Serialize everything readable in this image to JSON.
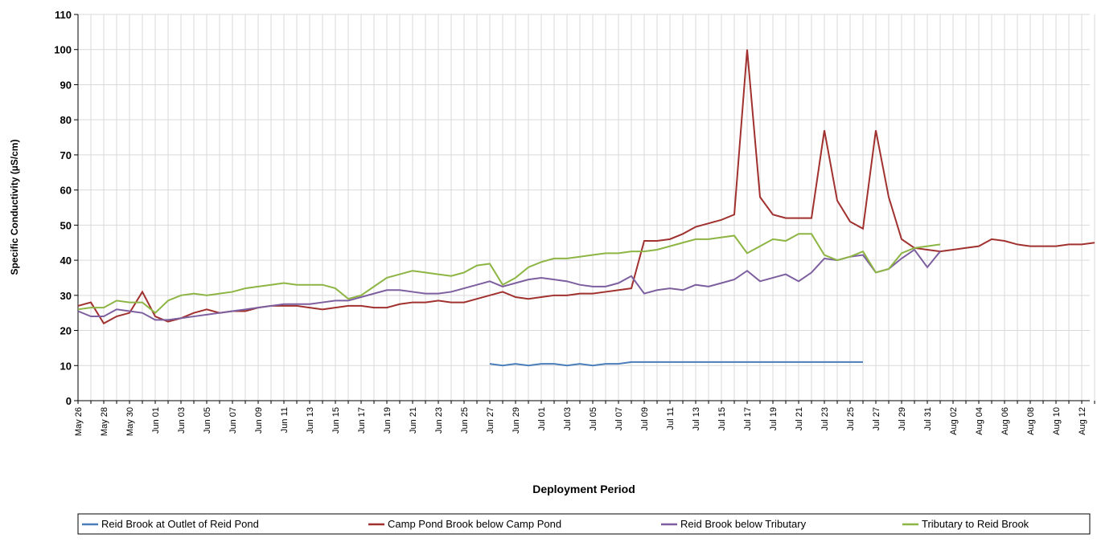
{
  "chart_data": {
    "type": "line",
    "xlabel": "Deployment Period",
    "ylabel": "Specific Conductivity  (µS/cm)",
    "categories": [
      "May 26",
      null,
      "May 28",
      null,
      "May 30",
      null,
      "Jun 01",
      null,
      "Jun 03",
      null,
      "Jun 05",
      null,
      "Jun 07",
      null,
      "Jun 09",
      null,
      "Jun 11",
      null,
      "Jun 13",
      null,
      "Jun 15",
      null,
      "Jun 17",
      null,
      "Jun 19",
      null,
      "Jun 21",
      null,
      "Jun 23",
      null,
      "Jun 25",
      null,
      "Jun 27",
      null,
      "Jun 29",
      null,
      "Jul 01",
      null,
      "Jul 03",
      null,
      "Jul 05",
      null,
      "Jul 07",
      null,
      "Jul 09",
      null,
      "Jul 11",
      null,
      "Jul 13",
      null,
      "Jul 15",
      null,
      "Jul 17",
      null,
      "Jul 19",
      null,
      "Jul 21",
      null,
      "Jul 23",
      null,
      "Jul 25",
      null,
      "Jul 27",
      null,
      "Jul 29",
      null,
      "Jul 31",
      null,
      "Aug 02",
      null,
      "Aug 04",
      null,
      "Aug 06",
      null,
      "Aug 08",
      null,
      "Aug 10",
      null,
      "Aug 12",
      null
    ],
    "series": [
      {
        "name": "Reid Brook at Outlet of Reid Pond",
        "color": "#4a7ebb",
        "values": [
          null,
          null,
          null,
          null,
          null,
          null,
          null,
          null,
          null,
          null,
          null,
          null,
          null,
          null,
          null,
          null,
          null,
          null,
          null,
          null,
          null,
          null,
          null,
          null,
          null,
          null,
          null,
          null,
          null,
          null,
          null,
          null,
          10.5,
          10,
          10.5,
          10,
          10.5,
          10.5,
          10,
          10.5,
          10,
          10.5,
          10.5,
          11,
          11,
          11,
          11,
          11,
          11,
          11,
          11,
          11,
          11,
          11,
          11,
          11,
          11,
          11,
          11,
          11,
          11,
          11,
          null,
          null,
          null,
          null,
          null,
          null,
          null,
          null,
          null,
          null,
          null,
          null,
          null,
          null,
          null,
          null,
          null,
          null
        ]
      },
      {
        "name": "Camp Pond Brook below Camp Pond",
        "color": "#a0312f",
        "values": [
          27,
          28,
          22,
          24,
          25,
          31,
          24,
          22.5,
          23.5,
          25,
          26,
          25,
          25.5,
          25.5,
          26.5,
          27,
          27,
          27,
          26.5,
          26,
          26.5,
          27,
          27,
          26.5,
          26.5,
          27.5,
          28,
          28,
          28.5,
          28,
          28,
          29,
          30,
          31,
          29.5,
          29,
          29.5,
          30,
          30,
          30.5,
          30.5,
          31,
          31.5,
          32,
          45.5,
          45.5,
          46,
          47.5,
          49.5,
          50.5,
          51.5,
          53,
          100,
          58,
          53,
          52,
          52,
          52,
          77,
          57,
          51,
          49,
          77,
          58,
          46,
          43.5,
          43,
          42.5,
          43,
          43.5,
          44,
          46,
          45.5,
          44.5,
          44,
          44,
          44,
          44.5,
          44.5,
          45
        ]
      },
      {
        "name": "Reid Brook below Tributary",
        "color": "#7d5fa0",
        "values": [
          25.5,
          24,
          24,
          26,
          25.5,
          25,
          23,
          23,
          23.5,
          24,
          24.5,
          25,
          25.5,
          26,
          26.5,
          27,
          27.5,
          27.5,
          27.5,
          28,
          28.5,
          28.5,
          29.5,
          30.5,
          31.5,
          31.5,
          31,
          30.5,
          30.5,
          31,
          32,
          33,
          34,
          32.5,
          33.5,
          34.5,
          35,
          34.5,
          34,
          33,
          32.5,
          32.5,
          33.5,
          35.5,
          30.5,
          31.5,
          32,
          31.5,
          33,
          32.5,
          33.5,
          34.5,
          37,
          34,
          35,
          36,
          34,
          36.5,
          40.5,
          40,
          41,
          41.5,
          36.5,
          37.5,
          40.5,
          43,
          38,
          42.5,
          null,
          null,
          null,
          null,
          null,
          null,
          null,
          null,
          null,
          null,
          null,
          null
        ]
      },
      {
        "name": "Tributary to Reid Brook",
        "color": "#8db544",
        "values": [
          26,
          26.5,
          26.5,
          28.5,
          28,
          28,
          25,
          28.5,
          30,
          30.5,
          30,
          30.5,
          31,
          32,
          32.5,
          33,
          33.5,
          33,
          33,
          33,
          32,
          29,
          30,
          32.5,
          35,
          36,
          37,
          36.5,
          36,
          35.5,
          36.5,
          38.5,
          39,
          33,
          35,
          38,
          39.5,
          40.5,
          40.5,
          41,
          41.5,
          42,
          42,
          42.5,
          42.5,
          43,
          44,
          45,
          46,
          46,
          46.5,
          47,
          42,
          44,
          46,
          45.5,
          47.5,
          47.5,
          41.5,
          40,
          41,
          42.5,
          36.5,
          37.5,
          42,
          43.5,
          44,
          44.5,
          null,
          null,
          null,
          null,
          null,
          null,
          null,
          null,
          null,
          null,
          null,
          null
        ]
      }
    ],
    "ylim": [
      0,
      110
    ],
    "yticks": [
      0,
      10,
      20,
      30,
      40,
      50,
      60,
      70,
      80,
      90,
      100,
      110
    ],
    "grid": true
  }
}
